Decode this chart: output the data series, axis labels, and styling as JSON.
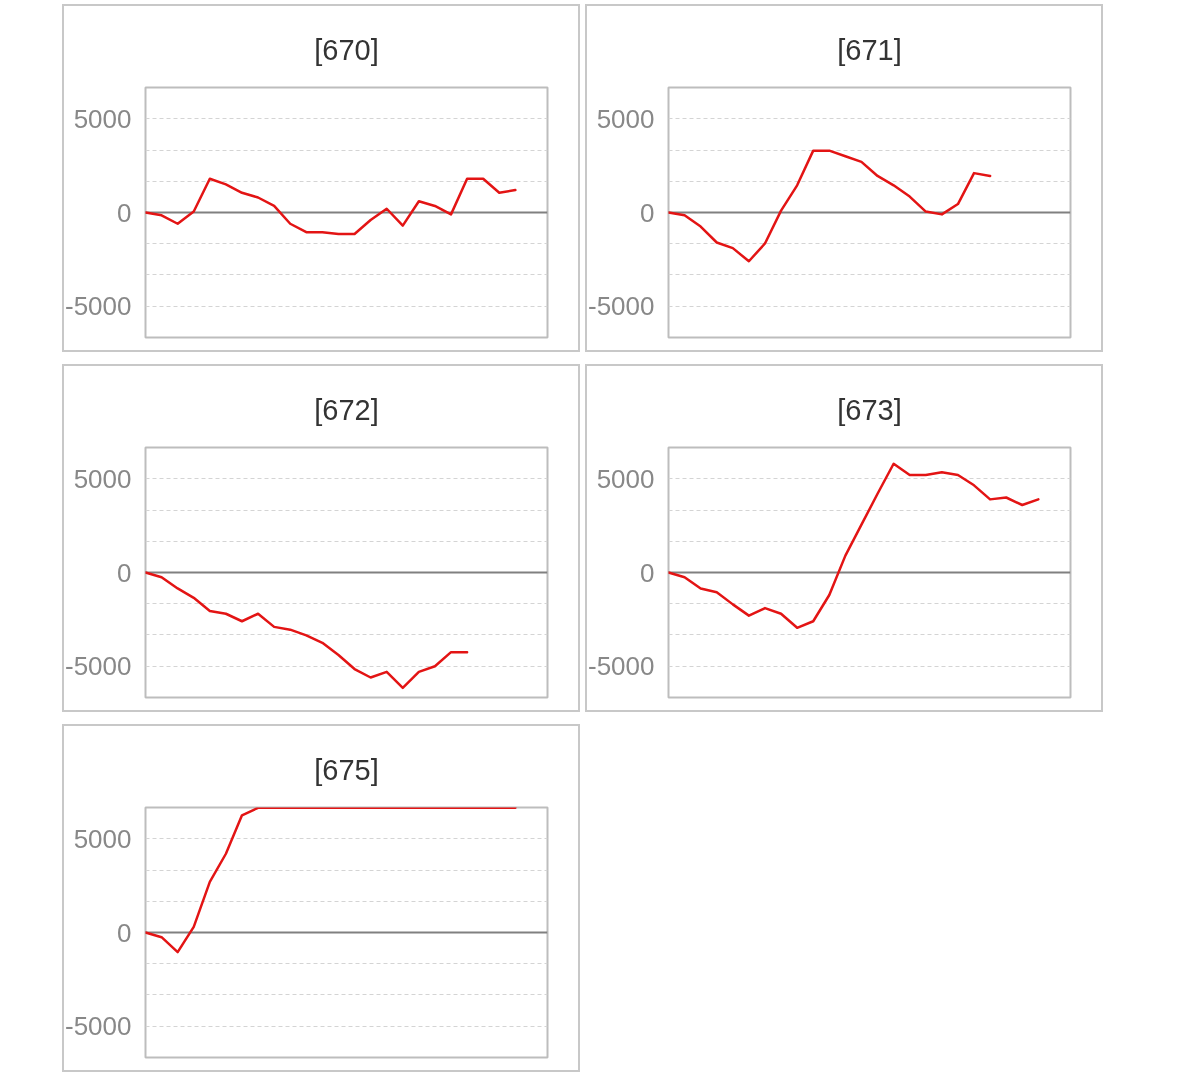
{
  "chart_data": [
    {
      "type": "line",
      "title": "[670]",
      "categories": [
        null,
        null,
        null,
        null,
        null,
        null,
        null,
        null,
        null,
        null,
        null,
        null,
        null,
        null,
        null,
        null,
        null,
        null,
        null,
        null,
        null,
        null,
        null,
        null,
        null,
        null
      ],
      "values": [
        0,
        -150,
        -600,
        50,
        1800,
        1500,
        1050,
        800,
        350,
        -600,
        -1050,
        -1050,
        -1150,
        -1150,
        -400,
        200,
        -700,
        600,
        350,
        -100,
        1800,
        1800,
        1050,
        1200,
        null,
        null
      ],
      "color": "#e31414",
      "ylim": [
        -6667,
        6667
      ],
      "yticks": [
        -5000,
        {
          "value": -3333,
          "label": null
        },
        {
          "value": -1667,
          "label": null
        },
        0,
        {
          "value": 1667,
          "label": null
        },
        {
          "value": 3333,
          "label": null
        },
        5000
      ],
      "grid": "y",
      "tick_labels": "y",
      "ref_lines": [
        {
          "axis": "y",
          "value": 0,
          "color": "#808080"
        }
      ]
    },
    {
      "type": "line",
      "title": "[671]",
      "categories": [
        null,
        null,
        null,
        null,
        null,
        null,
        null,
        null,
        null,
        null,
        null,
        null,
        null,
        null,
        null,
        null,
        null,
        null,
        null,
        null,
        null,
        null,
        null,
        null,
        null,
        null
      ],
      "values": [
        0,
        -150,
        -750,
        -1600,
        -1900,
        -2600,
        -1650,
        100,
        1450,
        3300,
        3300,
        3000,
        2700,
        1950,
        1450,
        850,
        50,
        -100,
        450,
        2100,
        1950,
        null,
        null,
        null,
        null,
        null
      ],
      "color": "#e31414",
      "ylim": [
        -6667,
        6667
      ],
      "yticks": [
        -5000,
        {
          "value": -3333,
          "label": null
        },
        {
          "value": -1667,
          "label": null
        },
        0,
        {
          "value": 1667,
          "label": null
        },
        {
          "value": 3333,
          "label": null
        },
        5000
      ],
      "grid": "y",
      "tick_labels": "y",
      "ref_lines": [
        {
          "axis": "y",
          "value": 0,
          "color": "#808080"
        }
      ]
    },
    {
      "type": "line",
      "title": "[672]",
      "categories": [
        null,
        null,
        null,
        null,
        null,
        null,
        null,
        null,
        null,
        null,
        null,
        null,
        null,
        null,
        null,
        null,
        null,
        null,
        null,
        null,
        null,
        null,
        null,
        null,
        null,
        null
      ],
      "values": [
        0,
        -250,
        -850,
        -1350,
        -2050,
        -2200,
        -2600,
        -2200,
        -2900,
        -3050,
        -3350,
        -3750,
        -4400,
        -5150,
        -5600,
        -5300,
        -6150,
        -5300,
        -5000,
        -4250,
        -4250,
        null,
        null,
        null,
        null,
        null
      ],
      "color": "#e31414",
      "ylim": [
        -6667,
        6667
      ],
      "yticks": [
        -5000,
        {
          "value": -3333,
          "label": null
        },
        {
          "value": -1667,
          "label": null
        },
        0,
        {
          "value": 1667,
          "label": null
        },
        {
          "value": 3333,
          "label": null
        },
        5000
      ],
      "grid": "y",
      "tick_labels": "y",
      "ref_lines": [
        {
          "axis": "y",
          "value": 0,
          "color": "#808080"
        }
      ]
    },
    {
      "type": "line",
      "title": "[673]",
      "categories": [
        null,
        null,
        null,
        null,
        null,
        null,
        null,
        null,
        null,
        null,
        null,
        null,
        null,
        null,
        null,
        null,
        null,
        null,
        null,
        null,
        null,
        null,
        null,
        null,
        null,
        null
      ],
      "values": [
        0,
        -250,
        -850,
        -1050,
        -1700,
        -2300,
        -1900,
        -2200,
        -2950,
        -2600,
        -1200,
        900,
        2550,
        4200,
        5800,
        5200,
        5200,
        5350,
        5200,
        4650,
        3900,
        4000,
        3600,
        3900,
        null,
        null
      ],
      "color": "#e31414",
      "ylim": [
        -6667,
        6667
      ],
      "yticks": [
        -5000,
        {
          "value": -3333,
          "label": null
        },
        {
          "value": -1667,
          "label": null
        },
        0,
        {
          "value": 1667,
          "label": null
        },
        {
          "value": 3333,
          "label": null
        },
        5000
      ],
      "grid": "y",
      "tick_labels": "y",
      "ref_lines": [
        {
          "axis": "y",
          "value": 0,
          "color": "#808080"
        }
      ]
    },
    {
      "type": "line",
      "title": "[675]",
      "categories": [
        null,
        null,
        null,
        null,
        null,
        null,
        null,
        null,
        null,
        null,
        null,
        null,
        null,
        null,
        null,
        null,
        null,
        null,
        null,
        null,
        null,
        null,
        null,
        null,
        null,
        null
      ],
      "values": [
        0,
        -250,
        -1050,
        300,
        2700,
        4200,
        6250,
        6650,
        6650,
        6650,
        6650,
        6650,
        6650,
        6650,
        6650,
        6650,
        6650,
        6650,
        6650,
        6650,
        6650,
        6650,
        6650,
        6650,
        null,
        null
      ],
      "color": "#e31414",
      "ylim": [
        -6667,
        6667
      ],
      "yticks": [
        -5000,
        {
          "value": -3333,
          "label": null
        },
        {
          "value": -1667,
          "label": null
        },
        0,
        {
          "value": 1667,
          "label": null
        },
        {
          "value": 3333,
          "label": null
        },
        5000
      ],
      "grid": "y",
      "tick_labels": "y",
      "ref_lines": [
        {
          "axis": "y",
          "value": 0,
          "color": "#808080"
        }
      ]
    }
  ]
}
